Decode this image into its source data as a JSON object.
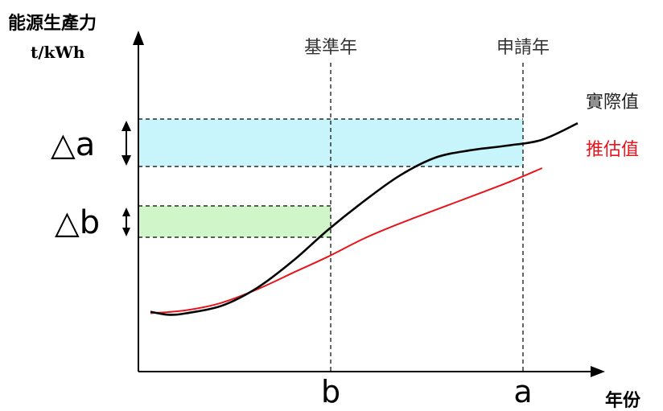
{
  "chart_data": {
    "type": "line",
    "ylabel": "能源生產力",
    "yunit": "t/kWh",
    "xlabel": "年份",
    "x_ticks": [
      "b",
      "a"
    ],
    "vlines": [
      "基準年",
      "申請年"
    ],
    "deltas": [
      {
        "label": "△a",
        "color": "#c7f5fb"
      },
      {
        "label": "△b",
        "color": "#cff5c9"
      }
    ],
    "series": [
      {
        "name": "實際值",
        "color": "#000000",
        "x": [
          0,
          0.5,
          1,
          2,
          3,
          4,
          5,
          6,
          7,
          8,
          9,
          10,
          11,
          12
        ],
        "values": [
          2.0,
          1.9,
          1.95,
          2.2,
          2.8,
          3.7,
          4.75,
          5.7,
          6.55,
          7.15,
          7.4,
          7.55,
          7.75,
          8.3
        ]
      },
      {
        "name": "推估值",
        "color": "#e8141b",
        "x": [
          0,
          1,
          2,
          3,
          4,
          5,
          6,
          7,
          8,
          9,
          10,
          11
        ],
        "values": [
          1.95,
          2.05,
          2.3,
          2.75,
          3.3,
          3.85,
          4.45,
          4.95,
          5.4,
          5.85,
          6.3,
          6.8
        ]
      }
    ],
    "xlim": [
      0,
      12
    ],
    "ylim": [
      0,
      10
    ]
  }
}
